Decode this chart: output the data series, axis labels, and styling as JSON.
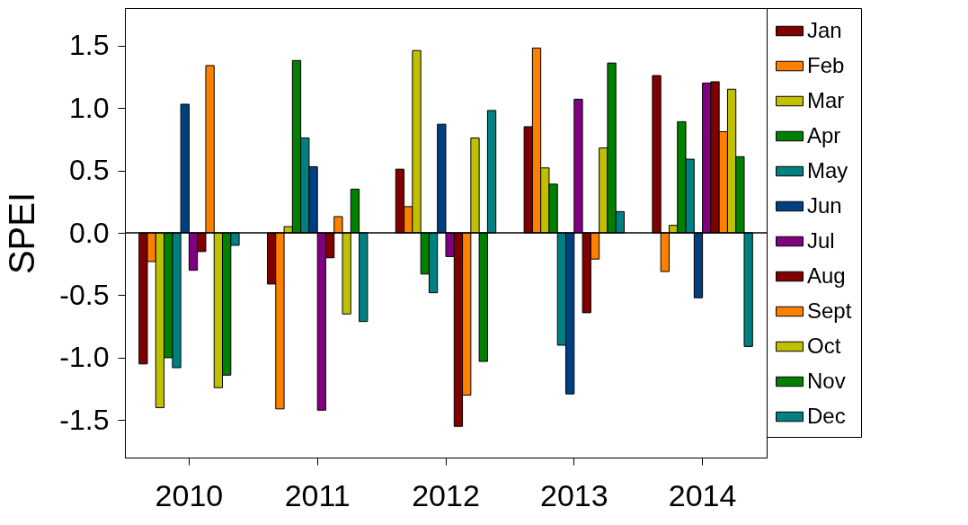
{
  "chart_data": {
    "type": "bar",
    "ylabel": "SPEI",
    "categories": [
      "2010",
      "2011",
      "2012",
      "2013",
      "2014"
    ],
    "ylim": [
      -1.8,
      1.8
    ],
    "yticks": [
      {
        "value": -1.5,
        "label": "-1.5"
      },
      {
        "value": -1,
        "label": "-1.0"
      },
      {
        "value": -0.5,
        "label": "-0.5"
      },
      {
        "value": 0,
        "label": "0.0"
      },
      {
        "value": 0.5,
        "label": "0.5"
      },
      {
        "value": 1,
        "label": "1.0"
      },
      {
        "value": 1.5,
        "label": "1.5"
      }
    ],
    "grid": false,
    "legend": "right",
    "ref_lines": [
      {
        "axis": "y",
        "value": 0,
        "color": "#000000"
      }
    ],
    "series": [
      {
        "name": "Jan",
        "color": "#800000",
        "values": [
          -1.05,
          -0.41,
          0.51,
          0.85,
          1.26
        ]
      },
      {
        "name": "Feb",
        "color": "#ff8000",
        "values": [
          -0.23,
          -1.41,
          0.21,
          1.48,
          -0.31
        ]
      },
      {
        "name": "Mar",
        "color": "#c0c000",
        "values": [
          -1.4,
          0.05,
          1.46,
          0.52,
          0.06
        ]
      },
      {
        "name": "Apr",
        "color": "#008000",
        "values": [
          -1.0,
          1.38,
          -0.33,
          0.39,
          0.89
        ]
      },
      {
        "name": "May",
        "color": "#008080",
        "values": [
          -1.08,
          0.76,
          -0.48,
          -0.9,
          0.59
        ]
      },
      {
        "name": "Jun",
        "color": "#004080",
        "values": [
          1.03,
          0.53,
          0.87,
          -1.29,
          -0.52
        ]
      },
      {
        "name": "Jul",
        "color": "#800080",
        "values": [
          -0.3,
          -1.42,
          -0.19,
          1.07,
          1.2
        ]
      },
      {
        "name": "Aug",
        "color": "#800000",
        "values": [
          -0.15,
          -0.2,
          -1.55,
          -0.64,
          1.21
        ]
      },
      {
        "name": "Sept",
        "color": "#ff8000",
        "values": [
          1.34,
          0.13,
          -1.3,
          -0.21,
          0.81
        ]
      },
      {
        "name": "Oct",
        "color": "#c0c000",
        "values": [
          -1.24,
          -0.65,
          0.76,
          0.68,
          1.15
        ]
      },
      {
        "name": "Nov",
        "color": "#008000",
        "values": [
          -1.14,
          0.35,
          -1.03,
          1.36,
          0.61
        ]
      },
      {
        "name": "Dec",
        "color": "#008080",
        "values": [
          -0.1,
          -0.71,
          0.98,
          0.17,
          -0.91
        ]
      }
    ]
  }
}
